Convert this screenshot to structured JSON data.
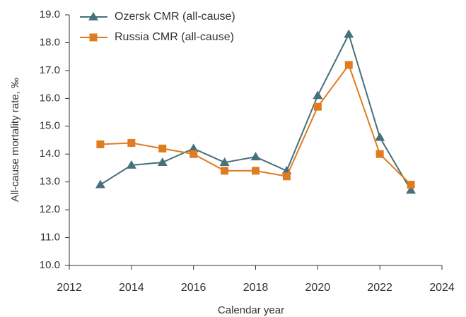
{
  "chart_data": {
    "type": "line",
    "x_label": "Calendar year",
    "y_label": "All-cause mortality rate, ‰",
    "x": [
      2013,
      2014,
      2015,
      2016,
      2017,
      2018,
      2019,
      2020,
      2021,
      2022,
      2023
    ],
    "series": [
      {
        "name": "Ozersk CMR (all-cause)",
        "color": "#46707a",
        "marker": "triangle",
        "values": [
          12.9,
          13.6,
          13.7,
          14.2,
          13.7,
          13.9,
          13.4,
          16.1,
          18.3,
          14.6,
          12.7
        ]
      },
      {
        "name": "Russia CMR (all-cause)",
        "color": "#e07b1f",
        "marker": "square",
        "values": [
          14.35,
          14.4,
          14.2,
          14.0,
          13.4,
          13.4,
          13.2,
          15.7,
          17.2,
          14.0,
          12.9
        ]
      }
    ],
    "xlim": [
      2012,
      2024
    ],
    "xticks": [
      2012,
      2014,
      2016,
      2018,
      2020,
      2022,
      2024
    ],
    "ylim": [
      10,
      19
    ],
    "yticks": [
      {
        "value": 10,
        "label": "10.0"
      },
      {
        "value": 11,
        "label": "11.0"
      },
      {
        "value": 12,
        "label": "12.0"
      },
      {
        "value": 13,
        "label": "13.0"
      },
      {
        "value": 14,
        "label": "14.0"
      },
      {
        "value": 15,
        "label": "15.0"
      },
      {
        "value": 16,
        "label": "16.0"
      },
      {
        "value": 17,
        "label": "17.0"
      },
      {
        "value": 18,
        "label": "18.0"
      },
      {
        "value": 19,
        "label": "19.0"
      }
    ],
    "grid": false,
    "legend": "top-left"
  }
}
